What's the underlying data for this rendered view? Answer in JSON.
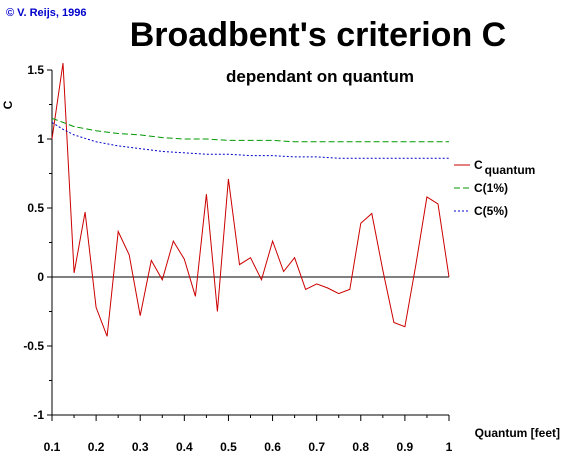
{
  "copyright": "© V. Reijs, 1996",
  "chart_data": {
    "type": "line",
    "title": "Broadbent's criterion C",
    "subtitle": "dependant on quantum",
    "xlabel": "Quantum [feet]",
    "ylabel": "C",
    "xlim": [
      0.1,
      1.0
    ],
    "ylim": [
      -1.0,
      1.5
    ],
    "x_ticks": [
      "0.1",
      "0.2",
      "0.3",
      "0.4",
      "0.5",
      "0.6",
      "0.7",
      "0.8",
      "0.9",
      "1"
    ],
    "y_ticks": [
      "1.5",
      "1",
      "0.5",
      "0",
      "-0.5",
      "-1"
    ],
    "grid": false,
    "legend_position": "right",
    "series": [
      {
        "name": "C",
        "name_subscript": "quantum",
        "color": "#cc0000",
        "dash": "solid",
        "x": [
          0.1,
          0.125,
          0.15,
          0.175,
          0.2,
          0.225,
          0.25,
          0.275,
          0.3,
          0.325,
          0.35,
          0.375,
          0.4,
          0.425,
          0.45,
          0.475,
          0.5,
          0.525,
          0.55,
          0.575,
          0.6,
          0.625,
          0.65,
          0.675,
          0.7,
          0.725,
          0.75,
          0.775,
          0.8,
          0.825,
          0.85,
          0.875,
          0.9,
          0.925,
          0.95,
          0.975,
          1.0
        ],
        "y": [
          1.0,
          1.55,
          0.03,
          0.47,
          -0.22,
          -0.43,
          0.33,
          0.16,
          -0.28,
          0.12,
          -0.02,
          0.26,
          0.13,
          -0.14,
          0.6,
          -0.25,
          0.71,
          0.09,
          0.14,
          -0.02,
          0.26,
          0.04,
          0.14,
          -0.09,
          -0.05,
          -0.08,
          -0.12,
          -0.09,
          0.39,
          0.46,
          0.05,
          -0.33,
          -0.36,
          0.09,
          0.58,
          0.53,
          0.0
        ]
      },
      {
        "name": "C(1%)",
        "color": "#009900",
        "dash": "dashed",
        "x": [
          0.1,
          0.125,
          0.15,
          0.2,
          0.25,
          0.3,
          0.35,
          0.4,
          0.45,
          0.5,
          0.55,
          0.6,
          0.65,
          0.7,
          0.75,
          0.8,
          0.85,
          0.9,
          0.95,
          1.0
        ],
        "y": [
          1.15,
          1.12,
          1.09,
          1.06,
          1.04,
          1.03,
          1.01,
          1.0,
          1.0,
          0.99,
          0.99,
          0.99,
          0.98,
          0.98,
          0.98,
          0.98,
          0.98,
          0.98,
          0.98,
          0.98
        ]
      },
      {
        "name": "C(5%)",
        "color": "#0000cc",
        "dash": "dotted",
        "x": [
          0.1,
          0.125,
          0.15,
          0.2,
          0.25,
          0.3,
          0.35,
          0.4,
          0.45,
          0.5,
          0.55,
          0.6,
          0.65,
          0.7,
          0.75,
          0.8,
          0.85,
          0.9,
          0.95,
          1.0
        ],
        "y": [
          1.12,
          1.07,
          1.03,
          0.98,
          0.95,
          0.93,
          0.91,
          0.9,
          0.89,
          0.89,
          0.88,
          0.88,
          0.87,
          0.87,
          0.86,
          0.86,
          0.86,
          0.86,
          0.86,
          0.86
        ]
      }
    ]
  }
}
